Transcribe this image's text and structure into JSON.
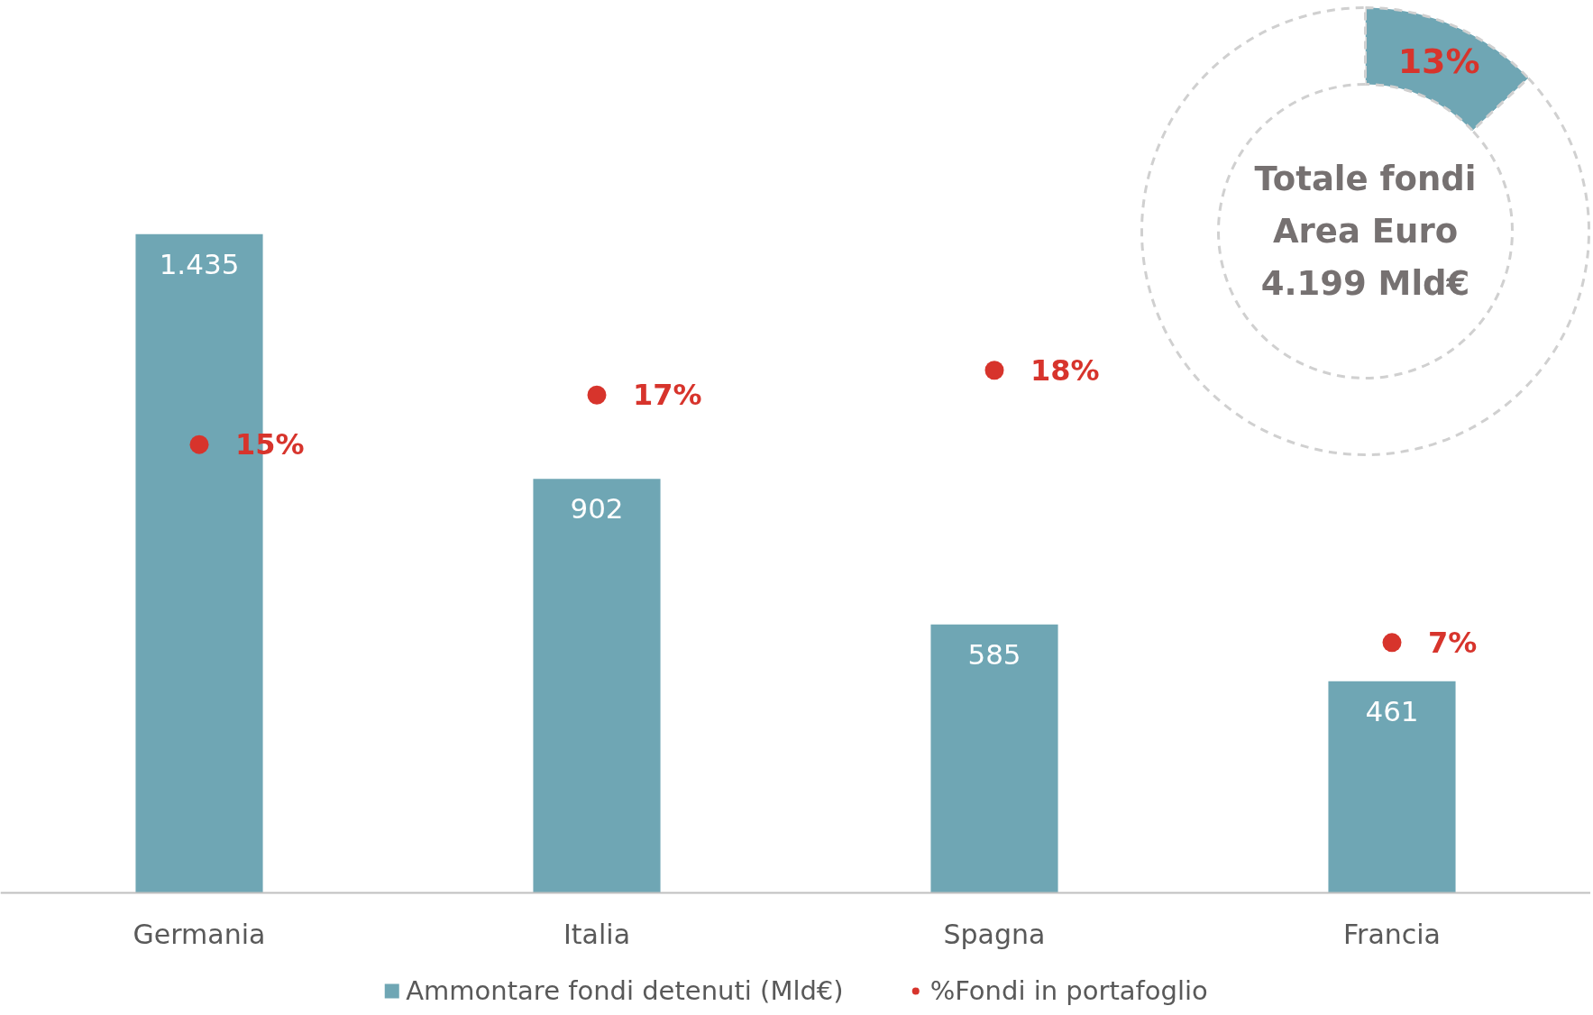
{
  "chart_data": [
    {
      "type": "bar",
      "categories": [
        "Germania",
        "Italia",
        "Spagna",
        "Francia"
      ],
      "series": [
        {
          "name": "Ammontare fondi detenuti (Mld€)",
          "type": "bar",
          "color": "#6fa6b4",
          "values": [
            1435,
            902,
            585,
            461
          ],
          "value_labels": [
            "1.435",
            "902",
            "585",
            "461"
          ]
        },
        {
          "name": "%Fondi in portafoglio",
          "type": "scatter",
          "axis": "y2",
          "color": "#d7342c",
          "values": [
            15,
            17,
            18,
            7
          ],
          "value_labels": [
            "15%",
            "17%",
            "18%",
            "7%"
          ]
        }
      ],
      "tick_labels": "x",
      "legend": "bottom",
      "grid": false,
      "marker": "circle"
    },
    {
      "type": "donut",
      "categories": [
        null,
        null
      ],
      "values": [
        13,
        87
      ],
      "colors": [
        "#6fa6b4",
        "#ffffff"
      ],
      "value_labels": [
        "13%",
        null
      ],
      "annotations": [
        "Totale fondi\nArea Euro\n4.199 Mld€"
      ]
    }
  ]
}
